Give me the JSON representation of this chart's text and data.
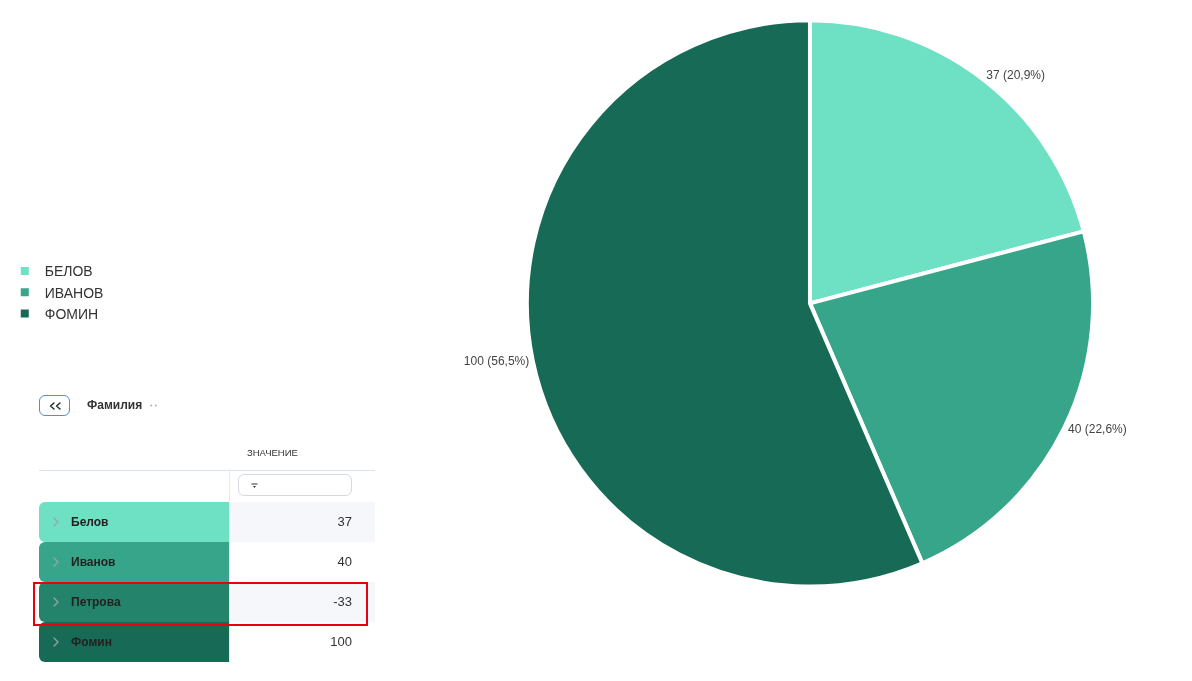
{
  "chart_data": [
    {
      "type": "pie",
      "categories": [
        "БЕЛОВ",
        "ИВАНОВ",
        "ФОМИН"
      ],
      "values": [
        37,
        40,
        100
      ],
      "colors": [
        "#6ee0c4",
        "#37a589",
        "#176a55"
      ],
      "value_labels": [
        "37 (20,9%)",
        "40 (22,6%)",
        "100 (56,5%)"
      ],
      "legend": "left"
    },
    {
      "type": "other",
      "title": "Фамилия",
      "ylabel": "ЗНАЧЕНИЕ",
      "categories": [
        "Белов",
        "Иванов",
        "Петрова",
        "Фомин"
      ],
      "values": [
        37,
        40,
        -33,
        100
      ],
      "colors": [
        "#6ee0c4",
        "#37a589",
        "#24836b",
        "#176a55"
      ],
      "data_labels": true
    }
  ]
}
